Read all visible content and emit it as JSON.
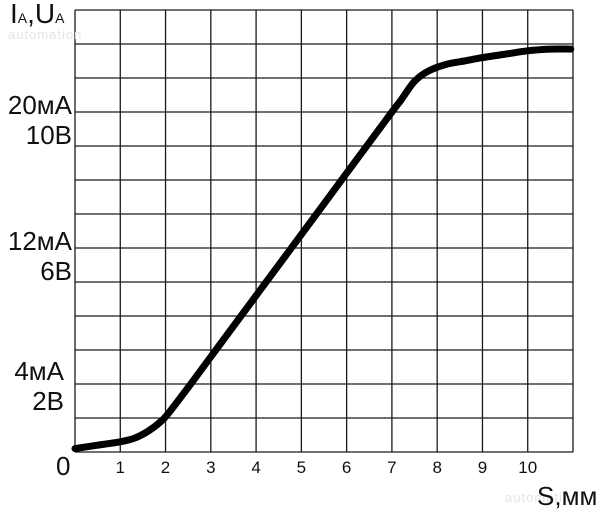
{
  "chart_data": {
    "type": "line",
    "y_axis_title": {
      "main": "I",
      "sub1": "A",
      "sep": ",",
      "main2": "U",
      "sub2": "A"
    },
    "x_axis_title": "S,мм",
    "origin_label": "0",
    "x_ticks": [
      "1",
      "2",
      "3",
      "4",
      "5",
      "6",
      "7",
      "8",
      "9",
      "10"
    ],
    "xlim": [
      0,
      11
    ],
    "grid": true,
    "y_tick_labels": [
      {
        "y": 2,
        "current": "4мА",
        "voltage": "2В"
      },
      {
        "y": 6,
        "current": "12мА",
        "voltage": "6В"
      },
      {
        "y": 10,
        "current": "20мА",
        "voltage": "10В"
      }
    ],
    "ylim": [
      0,
      13
    ],
    "ylabel_units": [
      "мА",
      "В"
    ],
    "series": [
      {
        "x": [
          0,
          0.5,
          1,
          1.3,
          1.6,
          1.9,
          2.1,
          2.5,
          3,
          4,
          5,
          6,
          7,
          7.2,
          7.5,
          7.8,
          8.2,
          8.6,
          9,
          9.5,
          10,
          10.5,
          10.95
        ],
        "y": [
          0.1,
          0.2,
          0.3,
          0.4,
          0.6,
          0.9,
          1.2,
          1.9,
          2.8,
          4.6,
          6.4,
          8.2,
          10.0,
          10.35,
          10.9,
          11.2,
          11.4,
          11.5,
          11.6,
          11.7,
          11.8,
          11.85,
          11.85
        ]
      }
    ],
    "colors": {
      "grid": "#1a1a1a",
      "line": "#000000",
      "watermark": "#e4e4e4"
    }
  },
  "watermark": {
    "top_left": "automation",
    "bottom_right": "automation"
  }
}
